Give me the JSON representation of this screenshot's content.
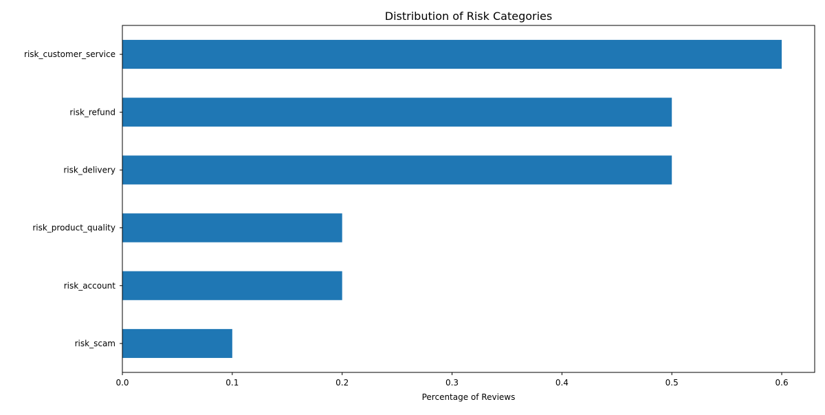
{
  "chart_data": {
    "type": "bar",
    "orientation": "horizontal",
    "title": "Distribution of Risk Categories",
    "xlabel": "Percentage of Reviews",
    "ylabel": "",
    "categories": [
      "risk_customer_service",
      "risk_refund",
      "risk_delivery",
      "risk_product_quality",
      "risk_account",
      "risk_scam"
    ],
    "values": [
      0.6,
      0.5,
      0.5,
      0.2,
      0.2,
      0.1
    ],
    "xlim": [
      0.0,
      0.63
    ],
    "xticks": [
      0.0,
      0.1,
      0.2,
      0.3,
      0.4,
      0.5,
      0.6
    ],
    "xtick_labels": [
      "0.0",
      "0.1",
      "0.2",
      "0.3",
      "0.4",
      "0.5",
      "0.6"
    ],
    "grid": false,
    "bar_color": "#1f77b4",
    "axis_color": "#000000",
    "background_color": "#ffffff"
  }
}
